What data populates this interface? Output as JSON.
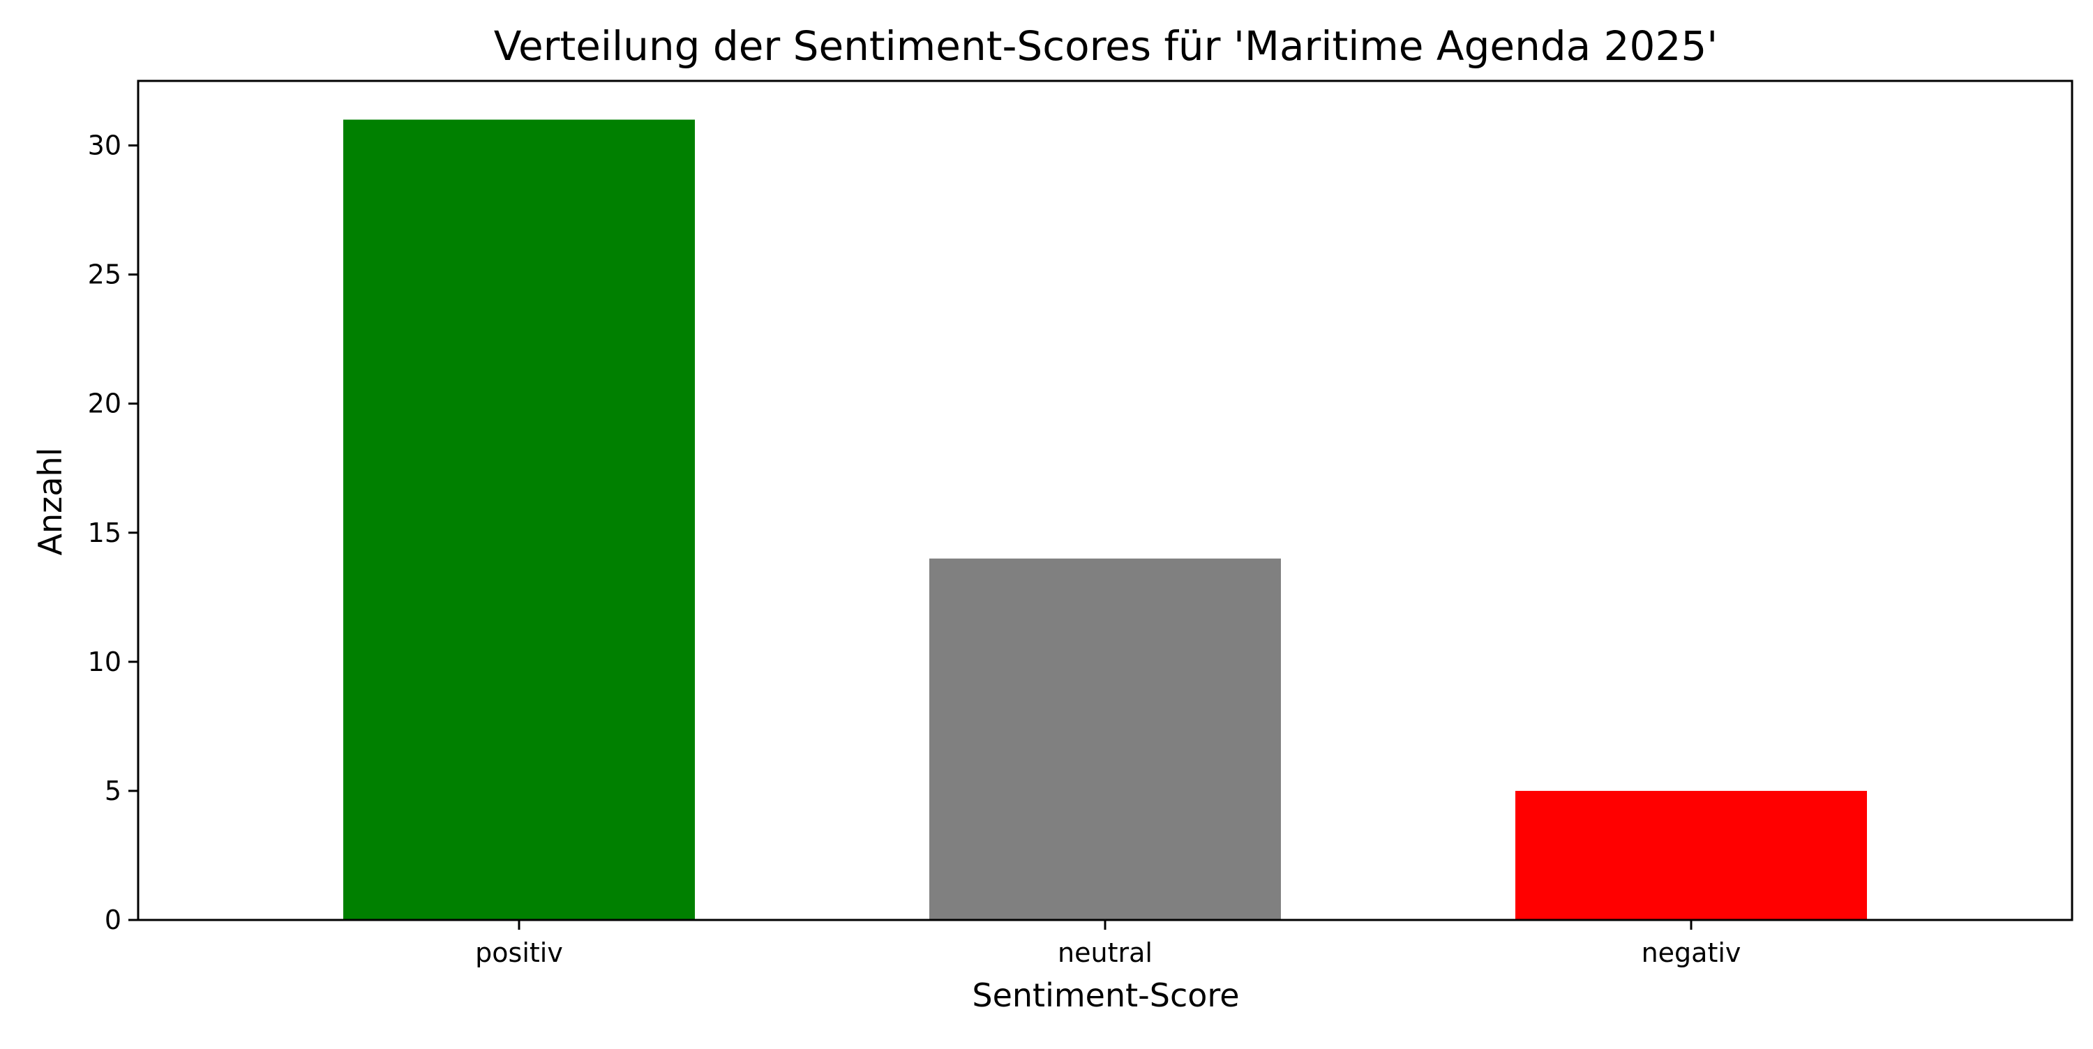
{
  "chart_data": {
    "type": "bar",
    "title": "Verteilung der Sentiment-Scores für 'Maritime Agenda 2025'",
    "xlabel": "Sentiment-Score",
    "ylabel": "Anzahl",
    "categories": [
      "positiv",
      "neutral",
      "negativ"
    ],
    "values": [
      31,
      14,
      5
    ],
    "colors": [
      "#008000",
      "#808080",
      "#ff0000"
    ],
    "ylim": [
      0,
      32.5
    ],
    "yticks": [
      0,
      5,
      10,
      15,
      20,
      25,
      30
    ],
    "ytick_labels": [
      "0",
      "5",
      "10",
      "15",
      "20",
      "25",
      "30"
    ],
    "grid": false,
    "baseline": {
      "value": 0,
      "style": "dashed",
      "color": "#808080"
    },
    "legend": "none"
  }
}
